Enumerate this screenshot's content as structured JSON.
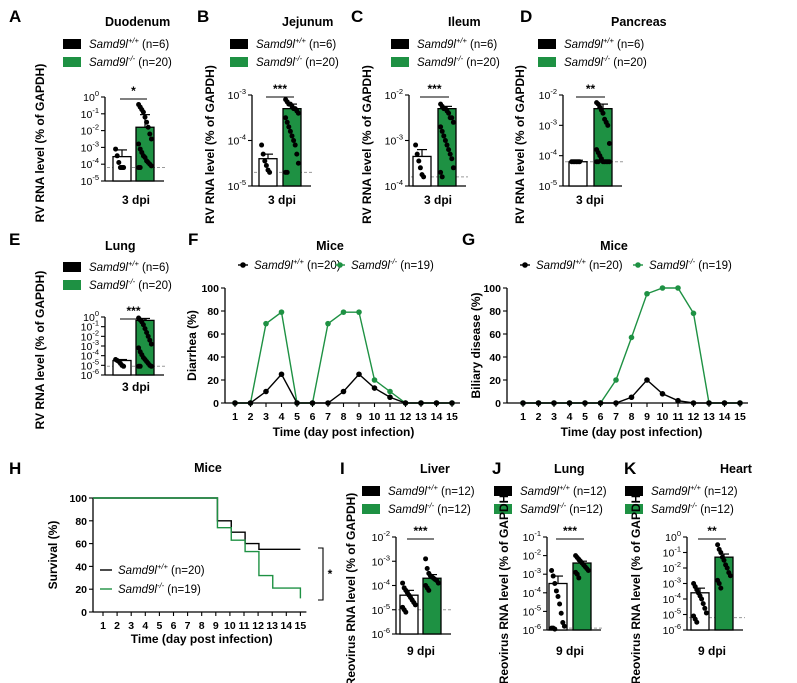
{
  "figure": {
    "colors": {
      "ko": "#1e9143",
      "wt": "#000000",
      "ref": "#9a9a9a"
    },
    "gene": "Samd9l",
    "wt_suffix": "+/+",
    "ko_suffix": "-/-"
  },
  "chart_data": [
    {
      "id": "A",
      "type": "bar",
      "title": "Duodenum",
      "ylabel": "RV RNA level (% of GAPDH)",
      "xlabel": "3 dpi",
      "ylim_exp": [
        -5,
        0
      ],
      "yticks_exp": [
        0,
        -1,
        -2,
        -3,
        -4,
        -5
      ],
      "legend": [
        "(n=6)",
        "(n=20)"
      ],
      "significance": "*",
      "detection_limit_exp": -4.2,
      "series": [
        {
          "name": "Samd9l+/+",
          "mean_exp": -3.55,
          "sem_up_exp": -3.15,
          "points_exp": [
            -3.1,
            -3.5,
            -3.9,
            -4.2,
            -4.2,
            -4.2
          ]
        },
        {
          "name": "Samd9l-/-",
          "mean_exp": -1.8,
          "sem_up_exp": -1.05,
          "points_exp": [
            -0.45,
            -0.6,
            -0.75,
            -0.9,
            -1.2,
            -1.5,
            -1.8,
            -2.2,
            -2.5,
            -2.8,
            -3.1,
            -3.3,
            -3.5,
            -3.6,
            -3.8,
            -3.9,
            -4.0,
            -4.1,
            -4.2,
            -4.2
          ]
        }
      ]
    },
    {
      "id": "B",
      "type": "bar",
      "title": "Jejunum",
      "ylabel": "RV RNA level (% of GAPDH)",
      "xlabel": "3 dpi",
      "ylim_exp": [
        -5,
        -3
      ],
      "yticks_exp": [
        -3,
        -4,
        -5
      ],
      "legend": [
        "(n=6)",
        "(n=20)"
      ],
      "significance": "***",
      "detection_limit_exp": -4.7,
      "series": [
        {
          "name": "Samd9l+/+",
          "mean_exp": -4.4,
          "sem_up_exp": -4.3,
          "points_exp": [
            -4.1,
            -4.3,
            -4.45,
            -4.55,
            -4.65,
            -4.7
          ]
        },
        {
          "name": "Samd9l-/-",
          "mean_exp": -3.3,
          "sem_up_exp": -3.2,
          "points_exp": [
            -3.1,
            -3.15,
            -3.2,
            -3.2,
            -3.25,
            -3.3,
            -3.3,
            -3.35,
            -3.4,
            -3.5,
            -3.6,
            -3.7,
            -3.8,
            -3.9,
            -4.0,
            -4.1,
            -4.3,
            -4.5,
            -4.7,
            -4.7
          ]
        }
      ]
    },
    {
      "id": "C",
      "type": "bar",
      "title": "Ileum",
      "ylabel": "RV RNA level (% of GAPDH)",
      "xlabel": "3 dpi",
      "ylim_exp": [
        -4,
        -2
      ],
      "yticks_exp": [
        -2,
        -3,
        -4
      ],
      "legend": [
        "(n=6)",
        "(n=20)"
      ],
      "significance": "***",
      "detection_limit_exp": -3.8,
      "series": [
        {
          "name": "Samd9l+/+",
          "mean_exp": -3.35,
          "sem_up_exp": -3.2,
          "points_exp": [
            -3.1,
            -3.3,
            -3.45,
            -3.6,
            -3.75,
            -3.8
          ]
        },
        {
          "name": "Samd9l-/-",
          "mean_exp": -2.3,
          "sem_up_exp": -2.25,
          "points_exp": [
            -2.2,
            -2.25,
            -2.3,
            -2.3,
            -2.35,
            -2.4,
            -2.5,
            -2.5,
            -2.6,
            -2.7,
            -2.8,
            -2.9,
            -3.0,
            -3.1,
            -3.2,
            -3.3,
            -3.4,
            -3.6,
            -3.7,
            -3.8
          ]
        }
      ]
    },
    {
      "id": "D",
      "type": "bar",
      "title": "Pancreas",
      "ylabel": "RV RNA level (% of GAPDH)",
      "xlabel": "3 dpi",
      "ylim_exp": [
        -5,
        -2
      ],
      "yticks_exp": [
        -2,
        -3,
        -4,
        -5
      ],
      "legend": [
        "(n=6)",
        "(n=20)"
      ],
      "significance": "**",
      "detection_limit_exp": -4.2,
      "series": [
        {
          "name": "Samd9l+/+",
          "mean_exp": -4.2,
          "sem_up_exp": -4.15,
          "points_exp": [
            -4.2,
            -4.2,
            -4.2,
            -4.2,
            -4.2,
            -4.2
          ]
        },
        {
          "name": "Samd9l-/-",
          "mean_exp": -2.45,
          "sem_up_exp": -2.3,
          "points_exp": [
            -2.25,
            -2.3,
            -2.4,
            -2.5,
            -2.6,
            -2.8,
            -2.9,
            -3.0,
            -3.6,
            -3.8,
            -3.9,
            -4.0,
            -4.1,
            -4.2,
            -4.2,
            -4.2,
            -4.2,
            -4.2,
            -4.2,
            -4.2
          ]
        }
      ]
    },
    {
      "id": "E",
      "type": "bar",
      "title": "Lung",
      "ylabel": "RV RNA level (% of GAPDH)",
      "xlabel": "3 dpi",
      "ylim_exp": [
        -6,
        0
      ],
      "yticks_exp": [
        0,
        -1,
        -2,
        -3,
        -4,
        -5,
        -6
      ],
      "legend": [
        "(n=6)",
        "(n=20)"
      ],
      "significance": "***",
      "detection_limit_exp": -5.1,
      "series": [
        {
          "name": "Samd9l+/+",
          "mean_exp": -4.5,
          "sem_up_exp": -4.4,
          "points_exp": [
            -4.4,
            -4.5,
            -4.6,
            -4.8,
            -5.0,
            -5.1
          ]
        },
        {
          "name": "Samd9l-/-",
          "mean_exp": -0.35,
          "sem_up_exp": -0.15,
          "points_exp": [
            -0.1,
            -0.3,
            -0.5,
            -0.8,
            -1.2,
            -1.6,
            -2.0,
            -2.4,
            -2.8,
            -3.2,
            -3.6,
            -3.9,
            -4.2,
            -4.4,
            -4.6,
            -4.8,
            -5.0,
            -5.1,
            -5.1,
            -5.1
          ]
        }
      ]
    },
    {
      "id": "F",
      "type": "line",
      "title": "Mice",
      "ylabel": "Diarrhea (%)",
      "xlabel": "Time (day post infection)",
      "ylim": [
        0,
        100
      ],
      "yticks": [
        0,
        20,
        40,
        60,
        80,
        100
      ],
      "x": [
        1,
        2,
        3,
        4,
        5,
        6,
        7,
        8,
        9,
        10,
        11,
        12,
        13,
        14,
        15
      ],
      "legend": [
        "(n=20)",
        "(n=19)"
      ],
      "series": [
        {
          "name": "Samd9l+/+",
          "values": [
            0,
            0,
            10,
            25,
            0,
            0,
            0,
            10,
            25,
            13,
            5,
            0,
            0,
            0,
            0
          ]
        },
        {
          "name": "Samd9l-/-",
          "values": [
            0,
            0,
            69,
            79,
            0,
            0,
            69,
            79,
            79,
            20,
            10,
            0,
            0,
            0,
            0
          ]
        }
      ]
    },
    {
      "id": "G",
      "type": "line",
      "title": "Mice",
      "ylabel": "Biliary disease (%)",
      "xlabel": "Time (day post infection)",
      "ylim": [
        0,
        100
      ],
      "yticks": [
        0,
        20,
        40,
        60,
        80,
        100
      ],
      "x": [
        1,
        2,
        3,
        4,
        5,
        6,
        7,
        8,
        9,
        10,
        11,
        12,
        13,
        14,
        15
      ],
      "legend": [
        "(n=20)",
        "(n=19)"
      ],
      "series": [
        {
          "name": "Samd9l+/+",
          "values": [
            0,
            0,
            0,
            0,
            0,
            0,
            0,
            5,
            20,
            8,
            2,
            0,
            0,
            0,
            0
          ]
        },
        {
          "name": "Samd9l-/-",
          "values": [
            0,
            0,
            0,
            0,
            0,
            0,
            20,
            57,
            95,
            100,
            100,
            78,
            0,
            0,
            0
          ]
        }
      ]
    },
    {
      "id": "H",
      "type": "line",
      "subtype": "survival-step",
      "title": "Mice",
      "ylabel": "Survival (%)",
      "xlabel": "Time (day post infection)",
      "ylim": [
        0,
        100
      ],
      "yticks": [
        0,
        20,
        40,
        60,
        80,
        100
      ],
      "xticks": [
        1,
        2,
        3,
        4,
        5,
        6,
        7,
        8,
        9,
        10,
        11,
        12,
        13,
        14,
        15
      ],
      "legend": [
        "(n=20)",
        "(n=19)"
      ],
      "significance": "*",
      "series": [
        {
          "name": "Samd9l+/+",
          "steps": [
            [
              0,
              100
            ],
            [
              9,
              80
            ],
            [
              10,
              70
            ],
            [
              11,
              60
            ],
            [
              12,
              55
            ],
            [
              15,
              55
            ]
          ]
        },
        {
          "name": "Samd9l-/-",
          "steps": [
            [
              0,
              100
            ],
            [
              9,
              74
            ],
            [
              10,
              63
            ],
            [
              11,
              53
            ],
            [
              12,
              32
            ],
            [
              13,
              21
            ],
            [
              15,
              12
            ]
          ]
        }
      ]
    },
    {
      "id": "I",
      "type": "bar",
      "title": "Liver",
      "ylabel": "Reovirus RNA level (% of GAPDH)",
      "xlabel": "9 dpi",
      "ylim_exp": [
        -6,
        -2
      ],
      "yticks_exp": [
        -2,
        -3,
        -4,
        -5,
        -6
      ],
      "legend": [
        "(n=12)",
        "(n=12)"
      ],
      "significance": "***",
      "detection_limit_exp": -5.0,
      "series": [
        {
          "name": "Samd9l+/+",
          "mean_exp": -4.4,
          "sem_up_exp": -4.2,
          "points_exp": [
            -3.9,
            -4.1,
            -4.2,
            -4.3,
            -4.4,
            -4.5,
            -4.6,
            -4.7,
            -4.8,
            -4.9,
            -5.0,
            -5.1
          ]
        },
        {
          "name": "Samd9l-/-",
          "mean_exp": -3.7,
          "sem_up_exp": -3.55,
          "points_exp": [
            -2.9,
            -3.3,
            -3.5,
            -3.6,
            -3.65,
            -3.7,
            -3.75,
            -3.8,
            -3.9,
            -4.0,
            -4.1,
            -4.2
          ]
        }
      ]
    },
    {
      "id": "J",
      "type": "bar",
      "title": "Lung",
      "ylabel": "Reovirus RNA level (% of GAPDH)",
      "xlabel": "9 dpi",
      "ylim_exp": [
        -6,
        -1
      ],
      "yticks_exp": [
        -1,
        -2,
        -3,
        -4,
        -5,
        -6
      ],
      "legend": [
        "(n=12)",
        "(n=12)"
      ],
      "significance": "***",
      "detection_limit_exp": -5.9,
      "series": [
        {
          "name": "Samd9l+/+",
          "mean_exp": -3.5,
          "sem_up_exp": -3.1,
          "points_exp": [
            -2.8,
            -3.1,
            -3.5,
            -3.9,
            -4.2,
            -4.6,
            -5.1,
            -5.6,
            -5.8,
            -5.9,
            -5.9,
            -5.95
          ]
        },
        {
          "name": "Samd9l-/-",
          "mean_exp": -2.4,
          "sem_up_exp": -2.3,
          "points_exp": [
            -2.0,
            -2.1,
            -2.2,
            -2.3,
            -2.4,
            -2.5,
            -2.6,
            -2.7,
            -2.8,
            -2.9,
            -3.0,
            -3.2
          ]
        }
      ]
    },
    {
      "id": "K",
      "type": "bar",
      "title": "Heart",
      "ylabel": "Reovirus RNA level (% of GAPDH)",
      "xlabel": "9 dpi",
      "ylim_exp": [
        -6,
        0
      ],
      "yticks_exp": [
        0,
        -1,
        -2,
        -3,
        -4,
        -5,
        -6
      ],
      "legend": [
        "(n=12)",
        "(n=12)"
      ],
      "significance": "**",
      "detection_limit_exp": -5.2,
      "series": [
        {
          "name": "Samd9l+/+",
          "mean_exp": -3.6,
          "sem_up_exp": -3.3,
          "points_exp": [
            -3.0,
            -3.2,
            -3.4,
            -3.6,
            -3.8,
            -4.0,
            -4.3,
            -4.6,
            -4.9,
            -5.1,
            -5.3,
            -5.5
          ]
        },
        {
          "name": "Samd9l-/-",
          "mean_exp": -1.3,
          "sem_up_exp": -1.1,
          "points_exp": [
            -0.5,
            -0.8,
            -1.0,
            -1.3,
            -1.5,
            -1.8,
            -2.0,
            -2.3,
            -2.5,
            -2.8,
            -3.0,
            -3.3
          ]
        }
      ]
    }
  ]
}
